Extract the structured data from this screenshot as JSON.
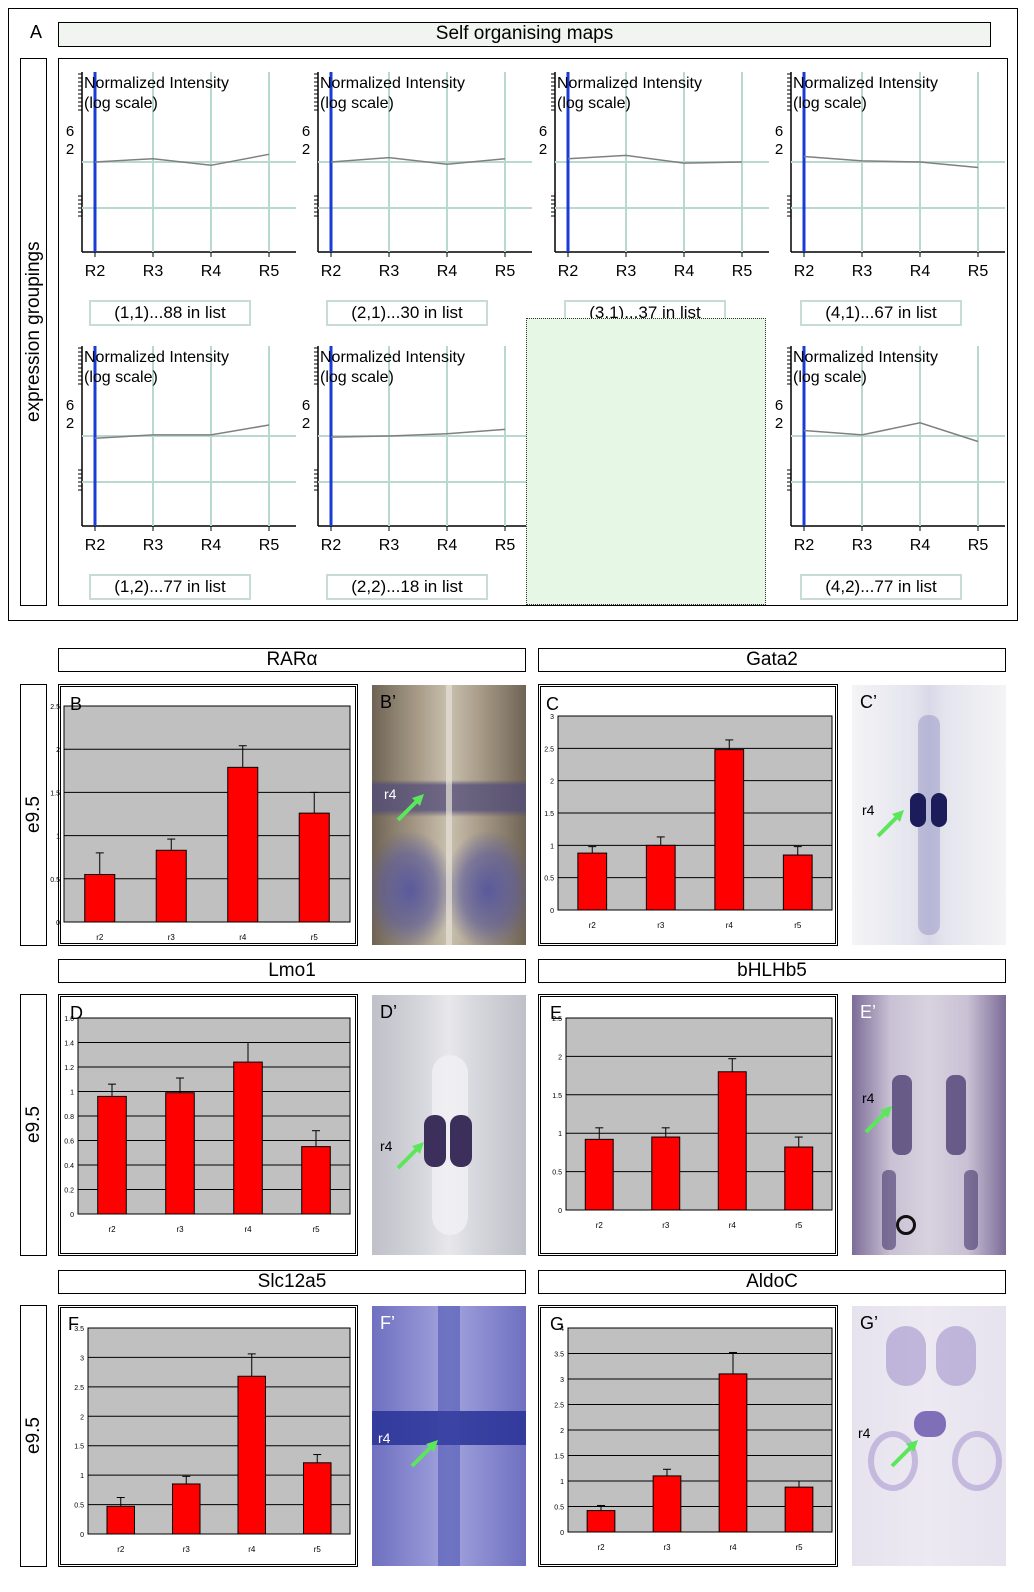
{
  "panel_a": {
    "letter": "A",
    "title": "Self organising maps",
    "side_label": "expression groupings",
    "axis_title_line1": "Normalized Intensity",
    "axis_title_line2": "(log scale)",
    "y_ticks": [
      "6",
      "2"
    ],
    "x_labels": [
      "R2",
      "R3",
      "R4",
      "R5"
    ],
    "captions": [
      "(1,1)...88 in list",
      "(2,1)...30 in list",
      "(3,1)...37 in list",
      "(4,1)...67 in list",
      "(1,2)...77 in list",
      "(2,2)...18 in list",
      "(4,2)...77 in list"
    ]
  },
  "rows": [
    {
      "stage": "e9.5",
      "left_gene": "RARα",
      "right_gene": "Gata2"
    },
    {
      "stage": "e9.5",
      "left_gene": "Lmo1",
      "right_gene": "bHLHb5"
    },
    {
      "stage": "e9.5",
      "left_gene": "Slc12a5",
      "right_gene": "AldoC"
    }
  ],
  "photo_labels": {
    "B_prime": "B’",
    "C_prime": "C’",
    "D_prime": "D’",
    "E_prime": "E’",
    "F_prime": "F’",
    "G_prime": "G’",
    "r4": "r4"
  },
  "colors": {
    "bar": "#ff0000",
    "plot_bg": "#c0c0c0",
    "som_line": "#808080",
    "som_vline": "#1a3bd6",
    "grid_green": "#b9d8cf",
    "arrow": "#5ce65c",
    "empty_cell": "#e6f7e6"
  },
  "chart_data": [
    {
      "type": "line",
      "panel": "(1,1)",
      "categories": [
        "R2",
        "R3",
        "R4",
        "R5"
      ],
      "values": [
        1.0,
        1.15,
        0.85,
        1.35
      ],
      "ylabel": "Normalized Intensity (log scale)"
    },
    {
      "type": "line",
      "panel": "(2,1)",
      "categories": [
        "R2",
        "R3",
        "R4",
        "R5"
      ],
      "values": [
        1.0,
        1.2,
        0.9,
        1.15
      ],
      "ylabel": "Normalized Intensity (log scale)"
    },
    {
      "type": "line",
      "panel": "(3,1)",
      "categories": [
        "R2",
        "R3",
        "R4",
        "R5"
      ],
      "values": [
        1.15,
        1.3,
        0.95,
        1.0
      ],
      "ylabel": "Normalized Intensity (log scale)"
    },
    {
      "type": "line",
      "panel": "(4,1)",
      "categories": [
        "R2",
        "R3",
        "R4",
        "R5"
      ],
      "values": [
        1.25,
        1.05,
        1.0,
        0.75
      ],
      "ylabel": "Normalized Intensity (log scale)"
    },
    {
      "type": "line",
      "panel": "(1,2)",
      "categories": [
        "R2",
        "R3",
        "R4",
        "R5"
      ],
      "values": [
        0.9,
        1.05,
        1.05,
        1.5
      ],
      "ylabel": "Normalized Intensity (log scale)"
    },
    {
      "type": "line",
      "panel": "(2,2)",
      "categories": [
        "R2",
        "R3",
        "R4",
        "R5"
      ],
      "values": [
        0.95,
        1.0,
        1.1,
        1.3
      ],
      "ylabel": "Normalized Intensity (log scale)"
    },
    {
      "type": "line",
      "panel": "(4,2)",
      "categories": [
        "R2",
        "R3",
        "R4",
        "R5"
      ],
      "values": [
        1.25,
        1.05,
        1.6,
        0.75
      ],
      "ylabel": "Normalized Intensity (log scale)"
    },
    {
      "type": "bar",
      "panel": "B",
      "gene": "RARα",
      "categories": [
        "r2",
        "r3",
        "r4",
        "r5"
      ],
      "values": [
        0.55,
        0.83,
        1.79,
        1.26
      ],
      "errors": [
        0.25,
        0.13,
        0.25,
        0.24
      ],
      "ylim": [
        0,
        2.5
      ],
      "yticks": [
        "0",
        "0.5",
        "1",
        "1.5",
        "2",
        "2.5"
      ]
    },
    {
      "type": "bar",
      "panel": "C",
      "gene": "Gata2",
      "categories": [
        "r2",
        "r3",
        "r4",
        "r5"
      ],
      "values": [
        0.88,
        1.0,
        2.48,
        0.85
      ],
      "errors": [
        0.1,
        0.13,
        0.15,
        0.13
      ],
      "ylim": [
        0,
        3
      ],
      "yticks": [
        "0",
        "0.5",
        "1",
        "1.5",
        "2",
        "2.5",
        "3"
      ]
    },
    {
      "type": "bar",
      "panel": "D",
      "gene": "Lmo1",
      "categories": [
        "r2",
        "r3",
        "r4",
        "r5"
      ],
      "values": [
        0.96,
        0.99,
        1.24,
        0.55
      ],
      "errors": [
        0.1,
        0.12,
        0.16,
        0.13
      ],
      "ylim": [
        0,
        1.6
      ],
      "yticks": [
        "0",
        "0.2",
        "0.4",
        "0.6",
        "0.8",
        "1",
        "1.2",
        "1.4",
        "1.6"
      ]
    },
    {
      "type": "bar",
      "panel": "E",
      "gene": "bHLHb5",
      "categories": [
        "r2",
        "r3",
        "r4",
        "r5"
      ],
      "values": [
        0.92,
        0.95,
        1.8,
        0.82
      ],
      "errors": [
        0.15,
        0.12,
        0.17,
        0.13
      ],
      "ylim": [
        0,
        2.5
      ],
      "yticks": [
        "0",
        "0.5",
        "1",
        "1.5",
        "2",
        "2.5"
      ]
    },
    {
      "type": "bar",
      "panel": "F",
      "gene": "Slc12a5",
      "categories": [
        "r2",
        "r3",
        "r4",
        "r5"
      ],
      "values": [
        0.47,
        0.85,
        2.68,
        1.21
      ],
      "errors": [
        0.15,
        0.13,
        0.38,
        0.14
      ],
      "ylim": [
        0,
        3.5
      ],
      "yticks": [
        "0",
        "0.5",
        "1",
        "1.5",
        "2",
        "2.5",
        "3",
        "3.5"
      ]
    },
    {
      "type": "bar",
      "panel": "G",
      "gene": "AldoC",
      "categories": [
        "r2",
        "r3",
        "r4",
        "r5"
      ],
      "values": [
        0.42,
        1.1,
        3.1,
        0.88
      ],
      "errors": [
        0.1,
        0.13,
        0.42,
        0.12
      ],
      "ylim": [
        0,
        4
      ],
      "yticks": [
        "0",
        "0.5",
        "1",
        "1.5",
        "2",
        "2.5",
        "3",
        "3.5",
        "4"
      ]
    }
  ]
}
